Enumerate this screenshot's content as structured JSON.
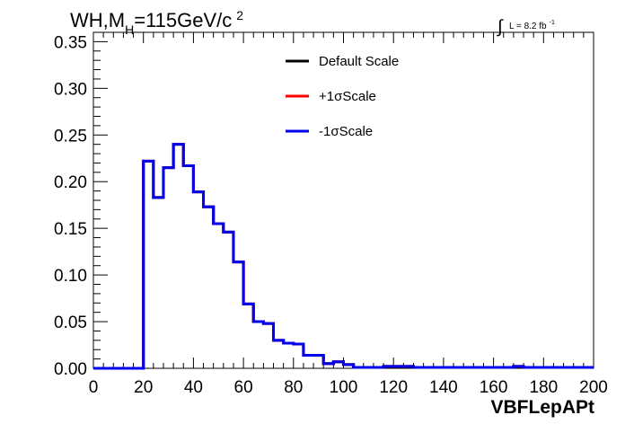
{
  "chart_data": {
    "type": "line",
    "title": "WH,M",
    "title_sub": "H",
    "title_rest": "=115GeV/c",
    "title_sup": "2",
    "lumi_text": "L = 8.2 fb",
    "lumi_sup": "-1",
    "xlabel": "VBFLepAPt",
    "ylabel": "",
    "xlim": [
      0,
      200
    ],
    "ylim": [
      0,
      0.36
    ],
    "x_ticks": [
      "0",
      "20",
      "40",
      "60",
      "80",
      "100",
      "120",
      "140",
      "160",
      "180",
      "200"
    ],
    "y_ticks": [
      "0.00",
      "0.05",
      "0.10",
      "0.15",
      "0.20",
      "0.25",
      "0.30",
      "0.35"
    ],
    "bin_edges": [
      0,
      4,
      8,
      12,
      16,
      20,
      24,
      28,
      32,
      36,
      40,
      44,
      48,
      52,
      56,
      60,
      64,
      68,
      72,
      76,
      80,
      84,
      88,
      92,
      96,
      100,
      104,
      108,
      112,
      116,
      120,
      124,
      128,
      132,
      136,
      140,
      144,
      148,
      152,
      156,
      160,
      164,
      168,
      172,
      176,
      180,
      184,
      188,
      192,
      196,
      200
    ],
    "series": [
      {
        "name": "Default Scale",
        "color": "#000000",
        "values": [
          0,
          0,
          0,
          0,
          0,
          0.222,
          0.183,
          0.215,
          0.24,
          0.217,
          0.189,
          0.173,
          0.155,
          0.146,
          0.114,
          0.069,
          0.05,
          0.048,
          0.03,
          0.027,
          0.026,
          0.014,
          0.014,
          0.005,
          0.007,
          0.004,
          0.001,
          0.001,
          0.001,
          0.002,
          0.002,
          0.002,
          0.001,
          0.001,
          0.001,
          0.001,
          0.001,
          0.001,
          0.001,
          0.001,
          0.001,
          0.001,
          0.002,
          0.001,
          0.001,
          0.001,
          0.001,
          0.001,
          0.001,
          0.001
        ]
      },
      {
        "name": "+1σScale",
        "color": "#ff0000",
        "values": [
          0,
          0,
          0,
          0,
          0,
          0.222,
          0.183,
          0.215,
          0.24,
          0.217,
          0.189,
          0.173,
          0.155,
          0.146,
          0.114,
          0.069,
          0.05,
          0.048,
          0.03,
          0.027,
          0.026,
          0.014,
          0.014,
          0.005,
          0.007,
          0.004,
          0.001,
          0.001,
          0.001,
          0.002,
          0.002,
          0.002,
          0.001,
          0.001,
          0.001,
          0.001,
          0.001,
          0.001,
          0.001,
          0.001,
          0.001,
          0.001,
          0.002,
          0.001,
          0.001,
          0.001,
          0.001,
          0.001,
          0.001,
          0.001
        ]
      },
      {
        "name": "-1σScale",
        "color": "#0000ee",
        "values": [
          0,
          0,
          0,
          0,
          0,
          0.222,
          0.183,
          0.215,
          0.24,
          0.217,
          0.189,
          0.173,
          0.155,
          0.146,
          0.114,
          0.069,
          0.05,
          0.048,
          0.03,
          0.027,
          0.026,
          0.014,
          0.014,
          0.005,
          0.007,
          0.004,
          0.001,
          0.001,
          0.001,
          0.002,
          0.002,
          0.002,
          0.001,
          0.001,
          0.001,
          0.001,
          0.001,
          0.001,
          0.001,
          0.001,
          0.001,
          0.001,
          0.002,
          0.001,
          0.001,
          0.001,
          0.001,
          0.001,
          0.001,
          0.001
        ]
      }
    ],
    "legend_position": "top-center",
    "grid": false
  }
}
